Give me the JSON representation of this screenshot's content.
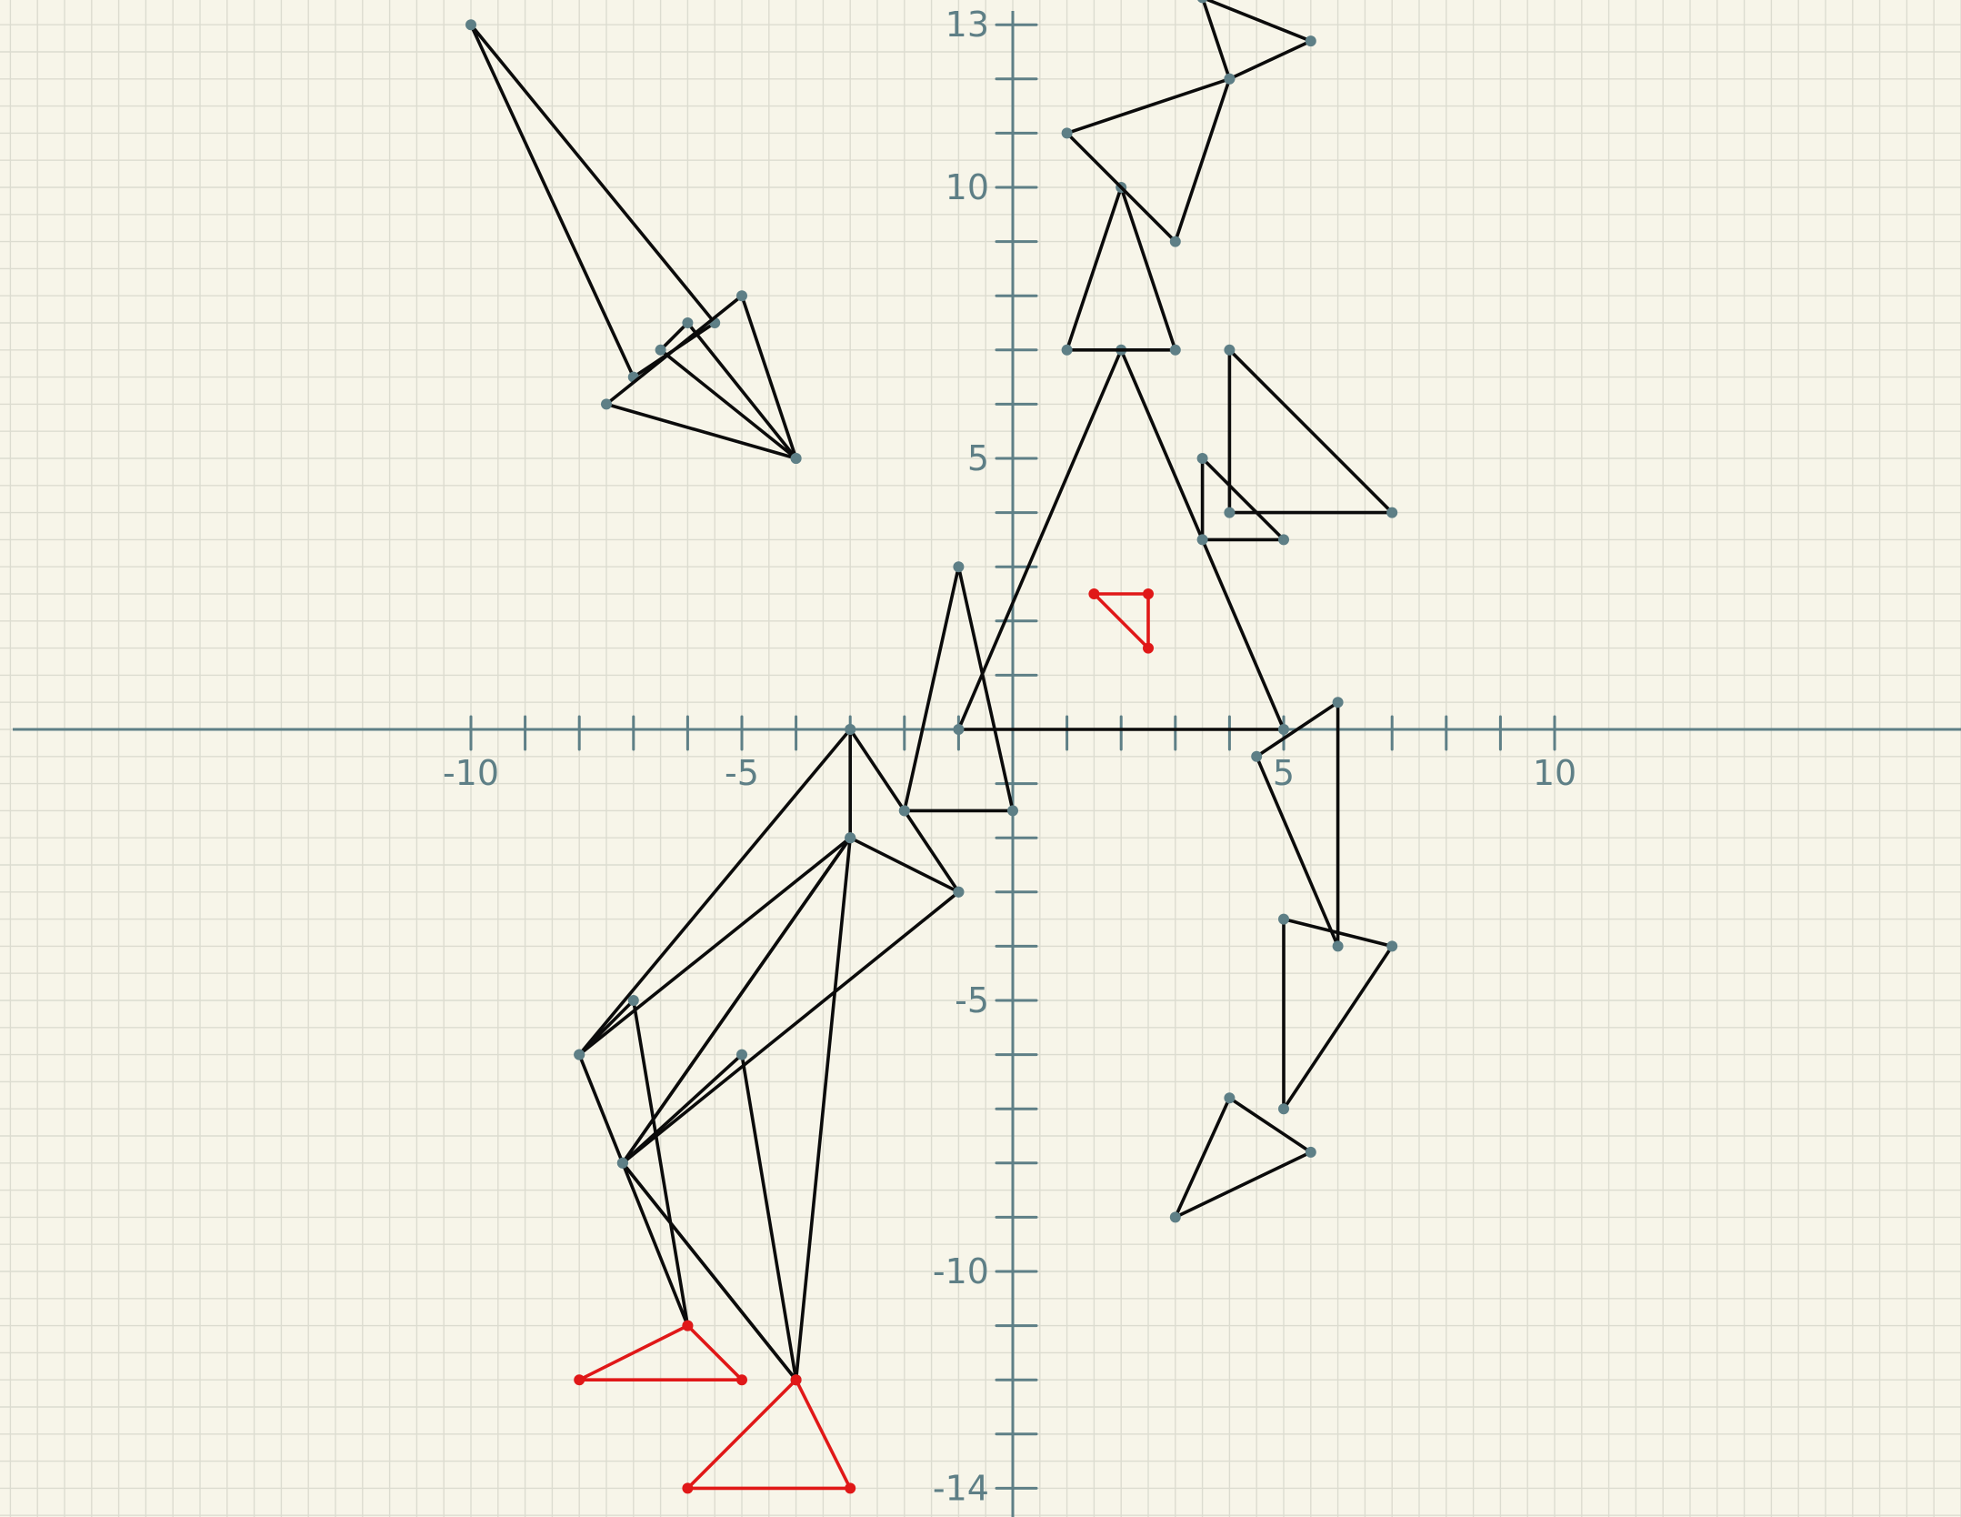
{
  "colors": {
    "background": "#f7f5e9",
    "grid": "#dcdcd0",
    "axis": "#5e7f86",
    "shape_black": "#0b0b0b",
    "shape_red": "#e01818",
    "vertex_dot": "#5e7f86"
  },
  "axes": {
    "x_labels": [
      {
        "value": -10,
        "text": "-10"
      },
      {
        "value": -5,
        "text": "-5"
      },
      {
        "value": 5,
        "text": "5"
      },
      {
        "value": 10,
        "text": "10"
      }
    ],
    "y_labels": [
      {
        "value": 13,
        "text": "13"
      },
      {
        "value": 10,
        "text": "10"
      },
      {
        "value": 5,
        "text": "5"
      },
      {
        "value": -5,
        "text": "-5"
      },
      {
        "value": -10,
        "text": "-10"
      },
      {
        "value": -14,
        "text": "-14"
      }
    ],
    "x_ticks": [
      -10,
      -9,
      -8,
      -7,
      -6,
      -5,
      -4,
      -3,
      -2,
      -1,
      1,
      2,
      3,
      4,
      5,
      6,
      7,
      8,
      9,
      10
    ],
    "y_ticks": [
      13,
      12,
      11,
      10,
      9,
      8,
      7,
      6,
      5,
      4,
      3,
      2,
      1,
      -1,
      -2,
      -3,
      -4,
      -5,
      -6,
      -7,
      -8,
      -9,
      -10,
      -11,
      -12,
      -13,
      -14
    ]
  },
  "shapes": [
    {
      "name": "original-large-triangle",
      "color": "black",
      "points": [
        [
          -1,
          0
        ],
        [
          5,
          0
        ],
        [
          2,
          7
        ]
      ]
    },
    {
      "name": "small-triangle-at-2-10",
      "color": "black",
      "points": [
        [
          2,
          10
        ],
        [
          3,
          7
        ],
        [
          1,
          7
        ]
      ]
    },
    {
      "name": "right-triangle-upper-right",
      "color": "black",
      "points": [
        [
          4,
          7
        ],
        [
          4,
          4
        ],
        [
          7,
          4
        ]
      ]
    },
    {
      "name": "small-right-triangle",
      "color": "black",
      "points": [
        [
          3.5,
          5
        ],
        [
          3.5,
          3.5
        ],
        [
          5,
          3.5
        ]
      ]
    },
    {
      "name": "thin-triangle-near-origin",
      "color": "black",
      "points": [
        [
          -1,
          3
        ],
        [
          -2,
          -1.5
        ],
        [
          0,
          -1.5
        ]
      ]
    },
    {
      "name": "top-triangle-a",
      "color": "black",
      "points": [
        [
          3.5,
          13.5
        ],
        [
          5.5,
          12.7
        ],
        [
          4,
          12
        ]
      ]
    },
    {
      "name": "top-triangle-b",
      "color": "black",
      "points": [
        [
          1,
          11
        ],
        [
          4,
          12
        ],
        [
          3,
          9
        ]
      ]
    },
    {
      "name": "upper-left-long-triangle",
      "color": "black",
      "points": [
        [
          -10,
          13
        ],
        [
          -7,
          6.5
        ],
        [
          -5.5,
          7.5
        ]
      ]
    },
    {
      "name": "upper-left-small-triangle",
      "color": "black",
      "points": [
        [
          -7.5,
          6
        ],
        [
          -5,
          8
        ],
        [
          -4,
          5
        ]
      ]
    },
    {
      "name": "small-triangle-left-center",
      "color": "black",
      "points": [
        [
          -6.5,
          7
        ],
        [
          -6,
          7.5
        ],
        [
          -4,
          5
        ]
      ]
    },
    {
      "name": "lower-right-thin-triangle",
      "color": "black",
      "points": [
        [
          6,
          0.5
        ],
        [
          6,
          -4
        ],
        [
          4.5,
          -0.5
        ]
      ]
    },
    {
      "name": "lower-right-triangle",
      "color": "black",
      "points": [
        [
          5,
          -3.5
        ],
        [
          7,
          -4
        ],
        [
          5,
          -7
        ]
      ]
    },
    {
      "name": "lower-right-small-triangle",
      "color": "black",
      "points": [
        [
          4,
          -6.8
        ],
        [
          5.5,
          -7.8
        ],
        [
          3,
          -9
        ]
      ]
    },
    {
      "name": "lower-left-triangle-a",
      "color": "black",
      "points": [
        [
          -3,
          0
        ],
        [
          -8,
          -6
        ],
        [
          -3,
          -2
        ]
      ]
    },
    {
      "name": "lower-left-triangle-b",
      "color": "black",
      "points": [
        [
          -3,
          -2
        ],
        [
          -1,
          -3
        ],
        [
          -7.2,
          -8
        ]
      ]
    },
    {
      "name": "lower-left-triangle-c",
      "color": "black",
      "points": [
        [
          -3,
          -2
        ],
        [
          -7.2,
          -8
        ],
        [
          -4,
          -12
        ]
      ]
    },
    {
      "name": "lower-left-triangle-d",
      "color": "black",
      "points": [
        [
          -8,
          -6
        ],
        [
          -6,
          -11
        ],
        [
          -7,
          -5
        ]
      ]
    },
    {
      "name": "lower-left-triangle-e",
      "color": "black",
      "points": [
        [
          -5,
          -6
        ],
        [
          -4,
          -12
        ],
        [
          -7.2,
          -8
        ]
      ]
    },
    {
      "name": "lower-left-triangle-f",
      "color": "black",
      "points": [
        [
          -3,
          0
        ],
        [
          -2,
          -1.5
        ],
        [
          -1,
          -3
        ]
      ]
    },
    {
      "name": "red-small-triangle",
      "color": "red",
      "points": [
        [
          1.5,
          2.5
        ],
        [
          2.5,
          2.5
        ],
        [
          2.5,
          1.5
        ]
      ]
    },
    {
      "name": "red-bottom-triangle-a",
      "color": "red",
      "points": [
        [
          -6,
          -11
        ],
        [
          -8,
          -12
        ],
        [
          -5,
          -12
        ]
      ]
    },
    {
      "name": "red-bottom-triangle-b",
      "color": "red",
      "points": [
        [
          -4,
          -12
        ],
        [
          -6,
          -14
        ],
        [
          -3,
          -14
        ]
      ]
    }
  ]
}
